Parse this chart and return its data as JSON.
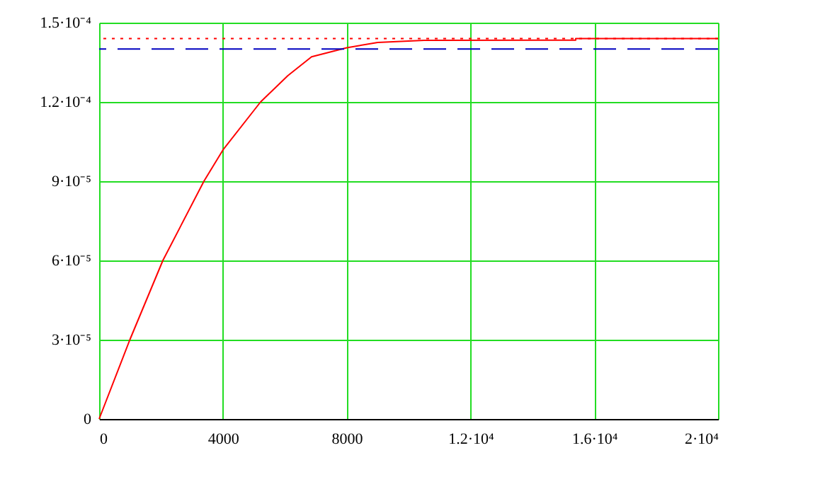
{
  "chart_data": {
    "type": "line",
    "x": [
      0,
      993,
      2060,
      3387,
      4000,
      5218,
      6102,
      6865,
      8000,
      9000,
      10500,
      15400,
      15400,
      20000
    ],
    "series": [
      {
        "color": "#ff0000",
        "values": [
          0,
          3e-05,
          6e-05,
          9e-05,
          0.0001018,
          0.00012,
          0.00013,
          0.0001371,
          0.0001405,
          0.0001425,
          0.0001433,
          0.0001434,
          0.000144,
          0.000144
        ]
      }
    ],
    "xlim": [
      0,
      20000
    ],
    "xticks": [
      0,
      4000,
      8000,
      {
        "value": 12000,
        "label": "1.2·10⁴"
      },
      {
        "value": 16000,
        "label": "1.6·10⁴"
      },
      {
        "value": 20000,
        "label": "2·10⁴"
      }
    ],
    "ylim": [
      0,
      0.00015
    ],
    "yticks": [
      0,
      {
        "value": 3e-05,
        "label": "3·10⁻⁵"
      },
      {
        "value": 6e-05,
        "label": "6·10⁻⁵"
      },
      {
        "value": 9e-05,
        "label": "9·10⁻⁵"
      },
      {
        "value": 0.00012,
        "label": "1.2·10⁻⁴"
      },
      {
        "value": 0.00015,
        "label": "1.5·10⁻⁴"
      }
    ],
    "ref_lines": [
      {
        "axis": "y",
        "value": 0.000144,
        "color": "#ff0000",
        "line_style": "dotted"
      },
      {
        "axis": "y",
        "value": 0.00014,
        "color": "#0000c0",
        "line_style": "dashed"
      }
    ],
    "grid": true,
    "marker": "none",
    "line_style": "solid"
  }
}
